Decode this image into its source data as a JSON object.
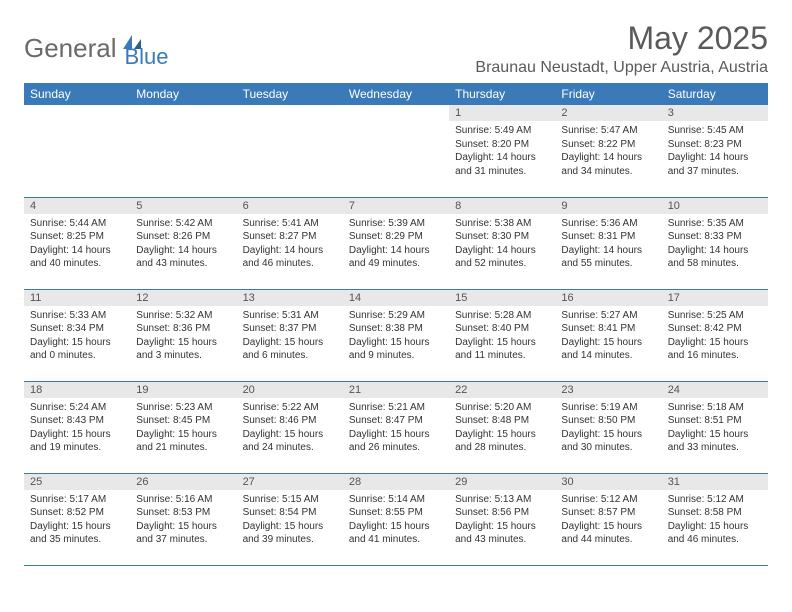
{
  "brand": {
    "part1": "General",
    "part2": "Blue"
  },
  "title": "May 2025",
  "location": "Braunau Neustadt, Upper Austria, Austria",
  "colors": {
    "header_bg": "#3a7ab8",
    "header_text": "#ffffff",
    "daynum_bg": "#e8e8e8",
    "body_text": "#333333",
    "rule": "#3a7ab8",
    "logo_gray": "#6a6a6a",
    "logo_blue": "#3a7ab8"
  },
  "weekdays": [
    "Sunday",
    "Monday",
    "Tuesday",
    "Wednesday",
    "Thursday",
    "Friday",
    "Saturday"
  ],
  "weeks": [
    [
      {
        "empty": true
      },
      {
        "empty": true
      },
      {
        "empty": true
      },
      {
        "empty": true
      },
      {
        "n": "1",
        "sr": "5:49 AM",
        "ss": "8:20 PM",
        "dl": "14 hours and 31 minutes."
      },
      {
        "n": "2",
        "sr": "5:47 AM",
        "ss": "8:22 PM",
        "dl": "14 hours and 34 minutes."
      },
      {
        "n": "3",
        "sr": "5:45 AM",
        "ss": "8:23 PM",
        "dl": "14 hours and 37 minutes."
      }
    ],
    [
      {
        "n": "4",
        "sr": "5:44 AM",
        "ss": "8:25 PM",
        "dl": "14 hours and 40 minutes."
      },
      {
        "n": "5",
        "sr": "5:42 AM",
        "ss": "8:26 PM",
        "dl": "14 hours and 43 minutes."
      },
      {
        "n": "6",
        "sr": "5:41 AM",
        "ss": "8:27 PM",
        "dl": "14 hours and 46 minutes."
      },
      {
        "n": "7",
        "sr": "5:39 AM",
        "ss": "8:29 PM",
        "dl": "14 hours and 49 minutes."
      },
      {
        "n": "8",
        "sr": "5:38 AM",
        "ss": "8:30 PM",
        "dl": "14 hours and 52 minutes."
      },
      {
        "n": "9",
        "sr": "5:36 AM",
        "ss": "8:31 PM",
        "dl": "14 hours and 55 minutes."
      },
      {
        "n": "10",
        "sr": "5:35 AM",
        "ss": "8:33 PM",
        "dl": "14 hours and 58 minutes."
      }
    ],
    [
      {
        "n": "11",
        "sr": "5:33 AM",
        "ss": "8:34 PM",
        "dl": "15 hours and 0 minutes."
      },
      {
        "n": "12",
        "sr": "5:32 AM",
        "ss": "8:36 PM",
        "dl": "15 hours and 3 minutes."
      },
      {
        "n": "13",
        "sr": "5:31 AM",
        "ss": "8:37 PM",
        "dl": "15 hours and 6 minutes."
      },
      {
        "n": "14",
        "sr": "5:29 AM",
        "ss": "8:38 PM",
        "dl": "15 hours and 9 minutes."
      },
      {
        "n": "15",
        "sr": "5:28 AM",
        "ss": "8:40 PM",
        "dl": "15 hours and 11 minutes."
      },
      {
        "n": "16",
        "sr": "5:27 AM",
        "ss": "8:41 PM",
        "dl": "15 hours and 14 minutes."
      },
      {
        "n": "17",
        "sr": "5:25 AM",
        "ss": "8:42 PM",
        "dl": "15 hours and 16 minutes."
      }
    ],
    [
      {
        "n": "18",
        "sr": "5:24 AM",
        "ss": "8:43 PM",
        "dl": "15 hours and 19 minutes."
      },
      {
        "n": "19",
        "sr": "5:23 AM",
        "ss": "8:45 PM",
        "dl": "15 hours and 21 minutes."
      },
      {
        "n": "20",
        "sr": "5:22 AM",
        "ss": "8:46 PM",
        "dl": "15 hours and 24 minutes."
      },
      {
        "n": "21",
        "sr": "5:21 AM",
        "ss": "8:47 PM",
        "dl": "15 hours and 26 minutes."
      },
      {
        "n": "22",
        "sr": "5:20 AM",
        "ss": "8:48 PM",
        "dl": "15 hours and 28 minutes."
      },
      {
        "n": "23",
        "sr": "5:19 AM",
        "ss": "8:50 PM",
        "dl": "15 hours and 30 minutes."
      },
      {
        "n": "24",
        "sr": "5:18 AM",
        "ss": "8:51 PM",
        "dl": "15 hours and 33 minutes."
      }
    ],
    [
      {
        "n": "25",
        "sr": "5:17 AM",
        "ss": "8:52 PM",
        "dl": "15 hours and 35 minutes."
      },
      {
        "n": "26",
        "sr": "5:16 AM",
        "ss": "8:53 PM",
        "dl": "15 hours and 37 minutes."
      },
      {
        "n": "27",
        "sr": "5:15 AM",
        "ss": "8:54 PM",
        "dl": "15 hours and 39 minutes."
      },
      {
        "n": "28",
        "sr": "5:14 AM",
        "ss": "8:55 PM",
        "dl": "15 hours and 41 minutes."
      },
      {
        "n": "29",
        "sr": "5:13 AM",
        "ss": "8:56 PM",
        "dl": "15 hours and 43 minutes."
      },
      {
        "n": "30",
        "sr": "5:12 AM",
        "ss": "8:57 PM",
        "dl": "15 hours and 44 minutes."
      },
      {
        "n": "31",
        "sr": "5:12 AM",
        "ss": "8:58 PM",
        "dl": "15 hours and 46 minutes."
      }
    ]
  ],
  "labels": {
    "sunrise": "Sunrise:",
    "sunset": "Sunset:",
    "daylight": "Daylight:"
  }
}
